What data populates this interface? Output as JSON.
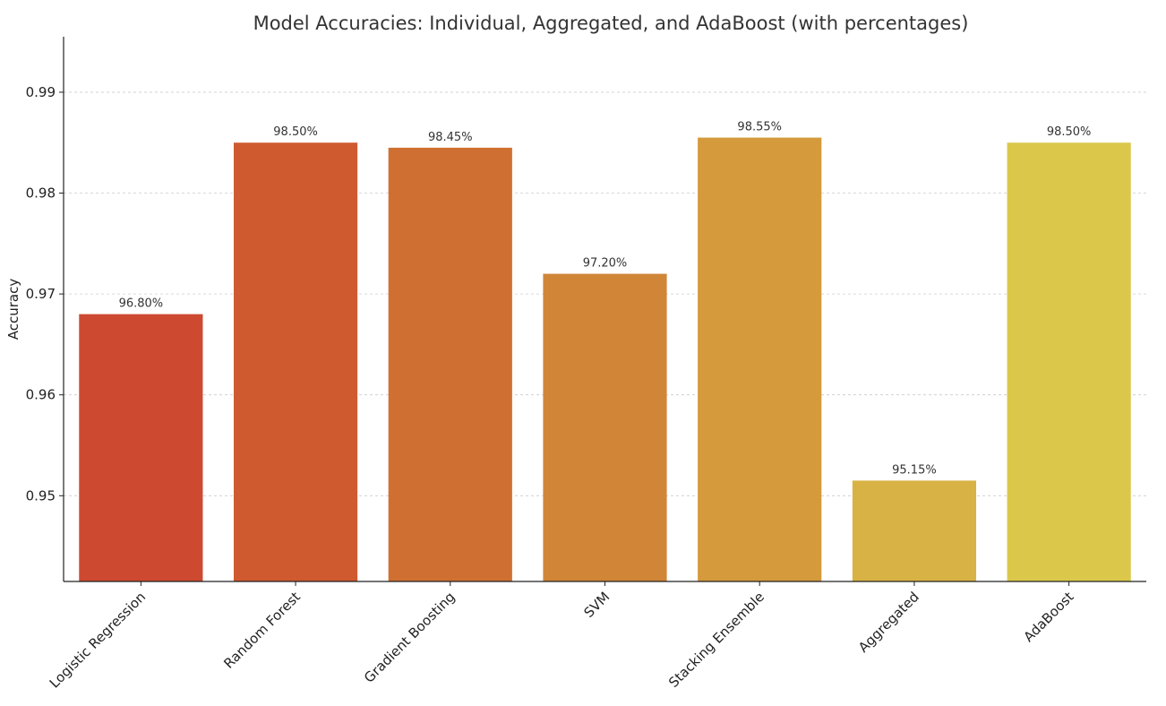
{
  "chart_data": {
    "type": "bar",
    "title": "Model Accuracies: Individual, Aggregated, and AdaBoost (with percentages)",
    "xlabel": "",
    "ylabel": "Accuracy",
    "categories": [
      "Logistic Regression",
      "Random Forest",
      "Gradient Boosting",
      "SVM",
      "Stacking Ensemble",
      "Aggregated",
      "AdaBoost"
    ],
    "values": [
      0.968,
      0.985,
      0.9845,
      0.972,
      0.9855,
      0.9515,
      0.985
    ],
    "data_labels": [
      "96.80%",
      "98.50%",
      "98.45%",
      "97.20%",
      "98.55%",
      "95.15%",
      "98.50%"
    ],
    "colors": [
      "#cd4a30",
      "#cf5a2f",
      "#cf7032",
      "#d08537",
      "#d49a3c",
      "#d8b244",
      "#dbc84a"
    ],
    "ylim": [
      0.9415,
      0.9955
    ],
    "yticks": [
      0.95,
      0.96,
      0.97,
      0.98,
      0.99
    ],
    "ytick_labels": [
      "0.95",
      "0.96",
      "0.97",
      "0.98",
      "0.99"
    ],
    "grid": true,
    "grid_axis": "y",
    "legend": "none"
  }
}
